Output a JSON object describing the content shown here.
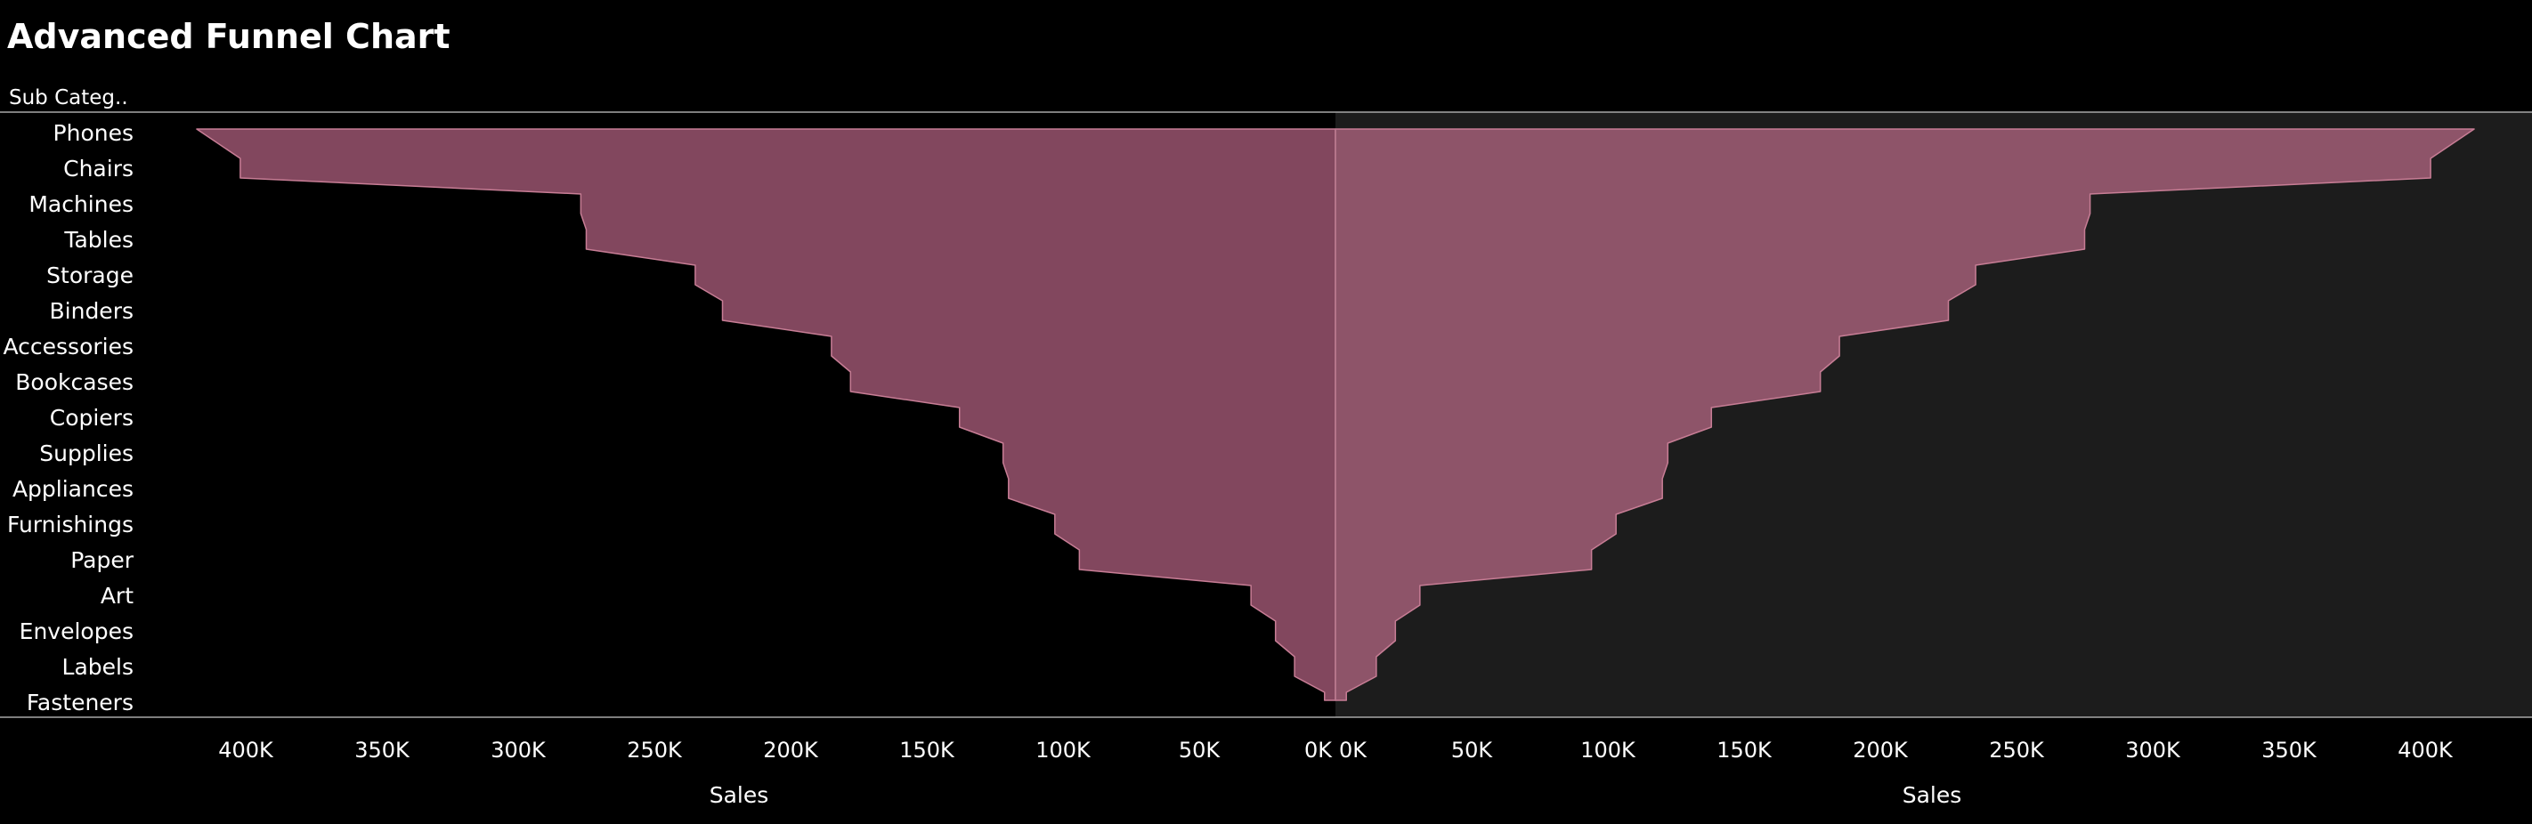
{
  "chart_data": {
    "type": "area",
    "title": "Advanced Funnel Chart",
    "row_header": "Sub Categ..",
    "categories": [
      "Phones",
      "Chairs",
      "Machines",
      "Tables",
      "Storage",
      "Binders",
      "Accessories",
      "Bookcases",
      "Copiers",
      "Supplies",
      "Appliances",
      "Furnishings",
      "Paper",
      "Art",
      "Envelopes",
      "Labels",
      "Fasteners"
    ],
    "series": [
      {
        "name": "Sales",
        "side": "left",
        "values": [
          418000,
          402000,
          277000,
          275000,
          235000,
          225000,
          185000,
          178000,
          138000,
          122000,
          120000,
          103000,
          94000,
          31000,
          22000,
          15000,
          4000
        ]
      },
      {
        "name": "Sales",
        "side": "right",
        "values": [
          418000,
          402000,
          277000,
          275000,
          235000,
          225000,
          185000,
          178000,
          138000,
          122000,
          120000,
          103000,
          94000,
          31000,
          22000,
          15000,
          4000
        ]
      }
    ],
    "x_ticks": [
      "400K",
      "350K",
      "300K",
      "250K",
      "200K",
      "150K",
      "100K",
      "50K",
      "0K"
    ],
    "x_ticks_right": [
      "0K",
      "50K",
      "100K",
      "150K",
      "200K",
      "250K",
      "300K",
      "350K",
      "400K"
    ],
    "x_tick_values": [
      400000,
      350000,
      300000,
      250000,
      200000,
      150000,
      100000,
      50000,
      0
    ],
    "x_tick_values_right": [
      0,
      50000,
      100000,
      150000,
      200000,
      250000,
      300000,
      350000,
      400000
    ],
    "xlabel_left": "Sales",
    "xlabel_right": "Sales",
    "xlim": [
      0,
      450000
    ],
    "colors": {
      "left_fill": "#82475e",
      "right_fill": "#8e5469",
      "stroke": "#c77d95",
      "right_panel_bg": "#1c1c1c",
      "rule": "#a8a8a8"
    }
  }
}
